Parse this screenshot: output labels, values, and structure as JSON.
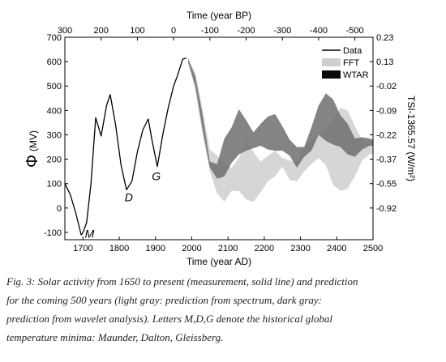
{
  "chart_data": {
    "type": "line",
    "xlabel_bottom": "Time (year AD)",
    "xlabel_top": "Time (year BP)",
    "ylabel_left_symbol": "Φ",
    "ylabel_left_unit": "(MV)",
    "ylabel_right": "TSI-1365.57 (W/m²)",
    "xlim": [
      1650,
      2500
    ],
    "ylim": [
      -130,
      700
    ],
    "x_ticks": [
      1700,
      1800,
      1900,
      2000,
      2100,
      2200,
      2300,
      2400,
      2500
    ],
    "y_ticks": [
      -100,
      0,
      100,
      200,
      300,
      400,
      500,
      600,
      700
    ],
    "top_ticks": [
      {
        "label": "300",
        "year": 1650
      },
      {
        "label": "200",
        "year": 1750
      },
      {
        "label": "100",
        "year": 1850
      },
      {
        "label": "0",
        "year": 1950
      },
      {
        "label": "-100",
        "year": 2050
      },
      {
        "label": "-200",
        "year": 2150
      },
      {
        "label": "-300",
        "year": 2250
      },
      {
        "label": "-400",
        "year": 2350
      },
      {
        "label": "-500",
        "year": 2450
      }
    ],
    "right_ticks": [
      {
        "label": "0.23",
        "phi": 700
      },
      {
        "label": "0.13",
        "phi": 600
      },
      {
        "label": "-0.02",
        "phi": 500
      },
      {
        "label": "-0.09",
        "phi": 400
      },
      {
        "label": "-0.22",
        "phi": 300
      },
      {
        "label": "-0.37",
        "phi": 200
      },
      {
        "label": "-0.55",
        "phi": 100
      },
      {
        "label": "-0.92",
        "phi": 0
      }
    ],
    "legend": {
      "position": "top-right",
      "items": [
        "Data",
        "FFT",
        "WTAR"
      ]
    },
    "annotations": [
      {
        "text": "M",
        "x": 1705,
        "y": -105
      },
      {
        "text": "D",
        "x": 1815,
        "y": 45
      },
      {
        "text": "G",
        "x": 1890,
        "y": 130
      }
    ],
    "series": [
      {
        "name": "Data",
        "style": "line",
        "color": "#000000",
        "x": [
          1650,
          1665,
          1680,
          1695,
          1700,
          1710,
          1722,
          1735,
          1750,
          1765,
          1775,
          1790,
          1805,
          1820,
          1835,
          1850,
          1865,
          1880,
          1890,
          1905,
          1920,
          1935,
          1950,
          1960,
          1975,
          1985
        ],
        "y": [
          100,
          55,
          -20,
          -110,
          -100,
          -60,
          100,
          370,
          295,
          420,
          465,
          340,
          175,
          75,
          110,
          230,
          320,
          365,
          280,
          170,
          300,
          410,
          500,
          540,
          610,
          615
        ]
      },
      {
        "name": "FFT",
        "style": "band",
        "color": "#cfcfcf",
        "x": [
          1990,
          2010,
          2030,
          2050,
          2070,
          2090,
          2110,
          2130,
          2150,
          2170,
          2190,
          2210,
          2230,
          2250,
          2270,
          2290,
          2310,
          2330,
          2350,
          2370,
          2390,
          2410,
          2430,
          2450,
          2470,
          2490,
          2500
        ],
        "upper": [
          615,
          555,
          405,
          240,
          215,
          180,
          165,
          205,
          275,
          230,
          190,
          215,
          235,
          205,
          195,
          190,
          250,
          280,
          300,
          320,
          365,
          410,
          400,
          335,
          280,
          260,
          255
        ],
        "lower": [
          600,
          480,
          300,
          150,
          60,
          25,
          70,
          70,
          35,
          25,
          65,
          110,
          130,
          170,
          115,
          110,
          150,
          180,
          205,
          175,
          95,
          70,
          80,
          130,
          195,
          220,
          225
        ]
      },
      {
        "name": "WTAR",
        "style": "band",
        "color": "#6e6e6e",
        "x": [
          1990,
          2010,
          2030,
          2050,
          2070,
          2090,
          2110,
          2130,
          2150,
          2170,
          2190,
          2210,
          2230,
          2250,
          2270,
          2290,
          2310,
          2330,
          2350,
          2370,
          2390,
          2410,
          2430,
          2450,
          2470,
          2490,
          2500
        ],
        "upper": [
          610,
          540,
          380,
          190,
          180,
          285,
          330,
          405,
          360,
          310,
          345,
          375,
          385,
          335,
          280,
          250,
          250,
          330,
          420,
          470,
          445,
          380,
          345,
          285,
          290,
          285,
          280
        ],
        "lower": [
          595,
          500,
          320,
          165,
          120,
          130,
          185,
          220,
          235,
          245,
          255,
          240,
          235,
          235,
          215,
          165,
          210,
          235,
          300,
          275,
          260,
          250,
          220,
          210,
          240,
          255,
          255
        ]
      }
    ]
  },
  "caption": {
    "lines": [
      "Fig. 3: Solar activity from 1650 to present (measurement, solid line) and prediction",
      "for the coming 500 years (light gray: prediction from spectrum, dark gray:",
      "prediction from wavelet analysis). Letters M,D,G denote the historical global",
      "temperature minima: Maunder, Dalton, Gleissberg."
    ]
  }
}
